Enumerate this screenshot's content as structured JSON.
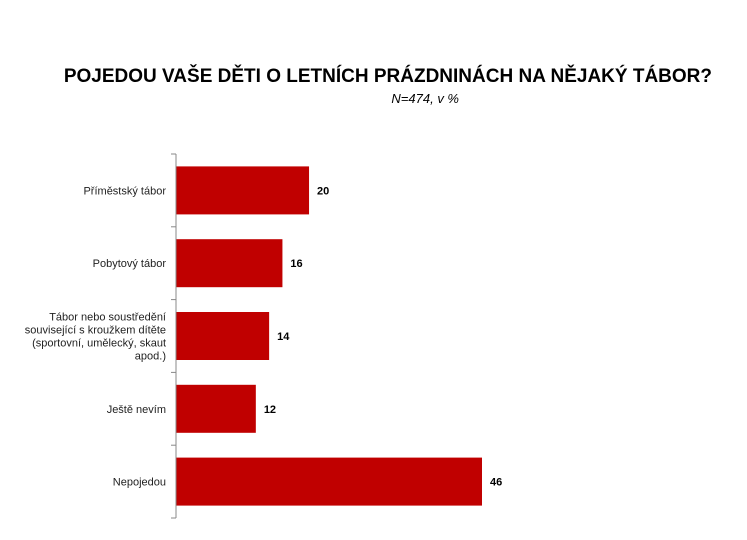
{
  "chart_data": {
    "type": "bar",
    "orientation": "horizontal",
    "title": "POJEDOU VAŠE DĚTI O LETNÍCH PRÁZDNINÁCH NA NĚJAKÝ TÁBOR?",
    "subtitle": "N=474, v %",
    "categories": [
      [
        "Příměstský tábor"
      ],
      [
        "Pobytový tábor"
      ],
      [
        "Tábor nebo soustředění",
        "související s kroužkem dítěte",
        "(sportovní, umělecký, skaut",
        "apod.)"
      ],
      [
        "Ještě nevím"
      ],
      [
        "Nepojedou"
      ]
    ],
    "values": [
      20,
      16,
      14,
      12,
      46
    ],
    "xlim": [
      0,
      68
    ],
    "bar_color": "#c00000",
    "grid": false,
    "legend": "none"
  }
}
